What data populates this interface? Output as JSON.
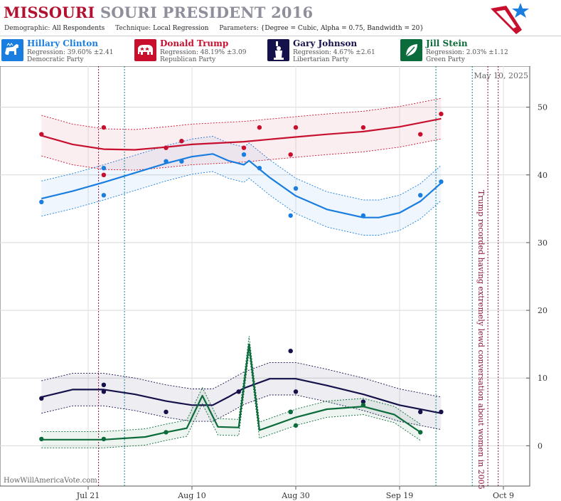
{
  "header": {
    "title_part1": "MISSOURI",
    "title_part2": "SOURI PRESIDENT 2016",
    "demographic_label": "Demographic:",
    "demographic_value": "All Respondents",
    "technique_label": "Technique:",
    "technique_value": "Local Regression",
    "parameters_label": "Parameters:",
    "parameters_value": "{Degree = Cubic, Alpha = 0.75, Bandwidth = 20}"
  },
  "colors": {
    "clinton": "#1a7ee0",
    "trump": "#c8102e",
    "johnson": "#15114a",
    "stein": "#0b6b3a",
    "event_line": "#8a1538",
    "date_line": "#17808a"
  },
  "candidates": [
    {
      "name": "Hillary Clinton",
      "regression": "Regression: 39.60% ±2.41",
      "party": "Democratic Party",
      "color": "#1a7ee0",
      "icon": "donkey-icon"
    },
    {
      "name": "Donald Trump",
      "regression": "Regression: 48.19% ±3.09",
      "party": "Republican Party",
      "color": "#c8102e",
      "icon": "elephant-icon"
    },
    {
      "name": "Gary Johnson",
      "regression": "Regression: 4.67% ±2.61",
      "party": "Libertarian Party",
      "color": "#15114a",
      "icon": "statue-of-liberty-icon"
    },
    {
      "name": "Jill Stein",
      "regression": "Regression: 2.03% ±1.12",
      "party": "Green Party",
      "color": "#0b6b3a",
      "icon": "leaf-icon"
    }
  ],
  "chart_data": {
    "type": "line",
    "date_label": "May 10, 2025",
    "watermark": "HowWillAmericaVote.com",
    "annotation": "Trump recorded having extremely lewd conversation about women in 2005",
    "x_ticks": [
      "Jul 21",
      "Aug 10",
      "Aug 30",
      "Sep 19",
      "Oct 9"
    ],
    "x_range": [
      "2016-07-13",
      "2016-10-12"
    ],
    "y_ticks": [
      0,
      10,
      20,
      30,
      40,
      50
    ],
    "ylim": [
      -6,
      56
    ],
    "vertical_lines": [
      {
        "date": "2016-07-23",
        "kind": "event"
      },
      {
        "date": "2016-07-28",
        "kind": "date"
      },
      {
        "date": "2016-09-26",
        "kind": "date"
      },
      {
        "date": "2016-10-03",
        "kind": "date"
      },
      {
        "date": "2016-10-06",
        "kind": "event"
      },
      {
        "date": "2016-10-08",
        "kind": "event"
      }
    ],
    "series": [
      {
        "name": "Hillary Clinton",
        "color": "#1a7ee0",
        "points": [
          [
            "2016-07-12",
            36
          ],
          [
            "2016-07-24",
            41
          ],
          [
            "2016-07-24",
            37
          ],
          [
            "2016-08-05",
            42
          ],
          [
            "2016-08-08",
            42
          ],
          [
            "2016-08-20",
            43
          ],
          [
            "2016-08-23",
            41
          ],
          [
            "2016-08-29",
            34
          ],
          [
            "2016-08-30",
            38
          ],
          [
            "2016-09-12",
            34
          ],
          [
            "2016-09-23",
            37
          ],
          [
            "2016-09-27",
            39
          ]
        ],
        "trend": [
          [
            "2016-07-12",
            36.5
          ],
          [
            "2016-07-18",
            37.6
          ],
          [
            "2016-07-24",
            38.9
          ],
          [
            "2016-07-30",
            40.3
          ],
          [
            "2016-08-05",
            41.7
          ],
          [
            "2016-08-10",
            42.7
          ],
          [
            "2016-08-14",
            43.1
          ],
          [
            "2016-08-17",
            42.1
          ],
          [
            "2016-08-20",
            41.5
          ],
          [
            "2016-08-21",
            42.1
          ],
          [
            "2016-08-25",
            39.6
          ],
          [
            "2016-08-30",
            36.9
          ],
          [
            "2016-09-05",
            34.9
          ],
          [
            "2016-09-12",
            33.7
          ],
          [
            "2016-09-15",
            33.7
          ],
          [
            "2016-09-19",
            34.4
          ],
          [
            "2016-09-23",
            36.1
          ],
          [
            "2016-09-27",
            38.8
          ]
        ],
        "band": 2.6
      },
      {
        "name": "Donald Trump",
        "color": "#c8102e",
        "points": [
          [
            "2016-07-12",
            46
          ],
          [
            "2016-07-24",
            47
          ],
          [
            "2016-07-24",
            40
          ],
          [
            "2016-08-05",
            44
          ],
          [
            "2016-08-08",
            45
          ],
          [
            "2016-08-20",
            44
          ],
          [
            "2016-08-23",
            47
          ],
          [
            "2016-08-29",
            43
          ],
          [
            "2016-08-30",
            47
          ],
          [
            "2016-09-12",
            47
          ],
          [
            "2016-09-23",
            46
          ],
          [
            "2016-09-27",
            49
          ]
        ],
        "trend": [
          [
            "2016-07-12",
            45.8
          ],
          [
            "2016-07-18",
            44.5
          ],
          [
            "2016-07-24",
            43.8
          ],
          [
            "2016-07-30",
            43.7
          ],
          [
            "2016-08-05",
            44.1
          ],
          [
            "2016-08-10",
            44.5
          ],
          [
            "2016-08-20",
            44.9
          ],
          [
            "2016-08-30",
            45.6
          ],
          [
            "2016-09-05",
            46.0
          ],
          [
            "2016-09-12",
            46.4
          ],
          [
            "2016-09-19",
            47.1
          ],
          [
            "2016-09-27",
            48.3
          ]
        ],
        "band": 3.0
      },
      {
        "name": "Gary Johnson",
        "color": "#15114a",
        "points": [
          [
            "2016-07-12",
            7
          ],
          [
            "2016-07-24",
            9
          ],
          [
            "2016-07-24",
            8
          ],
          [
            "2016-08-05",
            5
          ],
          [
            "2016-08-19",
            8
          ],
          [
            "2016-08-29",
            14
          ],
          [
            "2016-08-30",
            8
          ],
          [
            "2016-08-29",
            5
          ],
          [
            "2016-09-12",
            6.5
          ],
          [
            "2016-09-23",
            5
          ],
          [
            "2016-09-27",
            5
          ]
        ],
        "trend": [
          [
            "2016-07-12",
            7.2
          ],
          [
            "2016-07-18",
            8.3
          ],
          [
            "2016-07-24",
            8.3
          ],
          [
            "2016-07-30",
            7.6
          ],
          [
            "2016-08-05",
            6.6
          ],
          [
            "2016-08-10",
            6.0
          ],
          [
            "2016-08-14",
            6.0
          ],
          [
            "2016-08-17",
            7.2
          ],
          [
            "2016-08-20",
            8.5
          ],
          [
            "2016-08-25",
            9.9
          ],
          [
            "2016-08-30",
            9.9
          ],
          [
            "2016-09-05",
            8.9
          ],
          [
            "2016-09-12",
            7.6
          ],
          [
            "2016-09-19",
            6.0
          ],
          [
            "2016-09-27",
            4.8
          ]
        ],
        "band": 2.4
      },
      {
        "name": "Jill Stein",
        "color": "#0b6b3a",
        "points": [
          [
            "2016-07-12",
            1
          ],
          [
            "2016-07-24",
            1
          ],
          [
            "2016-08-05",
            2
          ],
          [
            "2016-08-29",
            5
          ],
          [
            "2016-08-30",
            3
          ],
          [
            "2016-09-12",
            6
          ],
          [
            "2016-09-23",
            2
          ]
        ],
        "trend": [
          [
            "2016-07-12",
            0.9
          ],
          [
            "2016-07-24",
            0.9
          ],
          [
            "2016-08-01",
            1.3
          ],
          [
            "2016-08-05",
            2.0
          ],
          [
            "2016-08-09",
            2.6
          ],
          [
            "2016-08-12",
            7.4
          ],
          [
            "2016-08-15",
            2.8
          ],
          [
            "2016-08-19",
            2.7
          ],
          [
            "2016-08-21",
            15.0
          ],
          [
            "2016-08-23",
            2.3
          ],
          [
            "2016-08-30",
            4.2
          ],
          [
            "2016-09-05",
            5.4
          ],
          [
            "2016-09-12",
            5.8
          ],
          [
            "2016-09-18",
            4.6
          ],
          [
            "2016-09-23",
            2.0
          ]
        ],
        "band": 1.2
      }
    ]
  }
}
